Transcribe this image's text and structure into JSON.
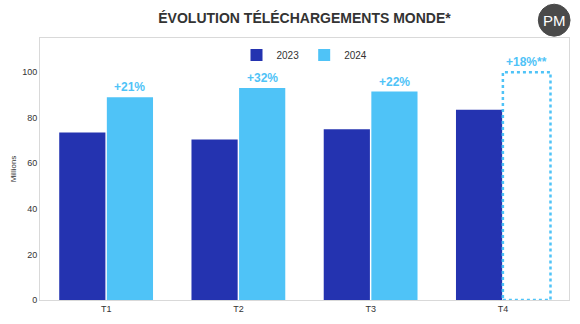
{
  "chart_data": {
    "type": "bar",
    "title": "ÉVOLUTION TÉLÉCHARGEMENTS MONDE*",
    "logo": "PM",
    "y_label": "Millions",
    "categories": [
      "T1",
      "T2",
      "T3",
      "T4"
    ],
    "series": [
      {
        "name": "2023",
        "color": "#2433b0",
        "values": [
          73.5,
          70.5,
          75,
          83.5
        ]
      },
      {
        "name": "2024",
        "color": "#4fc3f7",
        "values": [
          89,
          93,
          91.5,
          null
        ]
      }
    ],
    "annotations": [
      {
        "text": "+21%",
        "category": "T1"
      },
      {
        "text": "+32%",
        "category": "T2"
      },
      {
        "text": "+22%",
        "category": "T3"
      },
      {
        "text": "+18%**",
        "category": "T4"
      }
    ],
    "ylim": [
      0,
      115
    ],
    "yticks": [
      0,
      20,
      40,
      60,
      80,
      100
    ],
    "grid": false,
    "legend": "top"
  }
}
